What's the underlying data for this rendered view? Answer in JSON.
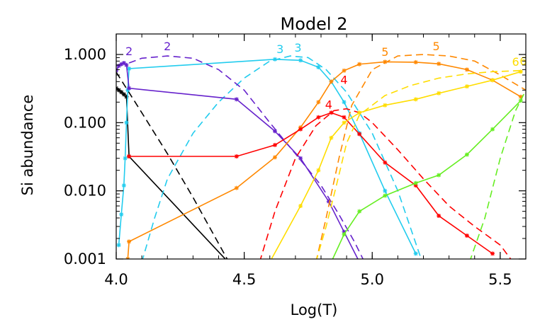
{
  "chart_data": {
    "type": "line",
    "title": "Model   2",
    "xlabel": "Log(T)",
    "ylabel": "Si abundance",
    "xlim": [
      4.0,
      5.6
    ],
    "ylim": [
      0.001,
      2.0
    ],
    "yscale": "log",
    "xticks": [
      {
        "value": 4.0,
        "label": "4.0"
      },
      {
        "value": 4.5,
        "label": "4.5"
      },
      {
        "value": 5.0,
        "label": "5.0"
      },
      {
        "value": 5.5,
        "label": "5.5"
      }
    ],
    "yticks": [
      {
        "value": 0.001,
        "label": "0.001"
      },
      {
        "value": 0.01,
        "label": "0.010"
      },
      {
        "value": 0.1,
        "label": "0.100"
      },
      {
        "value": 1.0,
        "label": "1.000"
      }
    ],
    "series": [
      {
        "color": "#000000",
        "style": "solid",
        "x": [
          4.0,
          4.01,
          4.02,
          4.03,
          4.04,
          4.05,
          4.45
        ],
        "y": [
          0.32,
          0.3,
          0.28,
          0.26,
          0.24,
          0.032,
          0.0008
        ]
      },
      {
        "color": "#000000",
        "style": "dashed",
        "x": [
          4.0,
          4.1,
          4.2,
          4.3,
          4.44
        ],
        "y": [
          0.55,
          0.14,
          0.035,
          0.008,
          0.0009
        ]
      },
      {
        "color": "#22ccee",
        "style": "solid",
        "x": [
          4.01,
          4.02,
          4.03,
          4.035,
          4.04,
          4.045,
          4.05,
          4.62,
          4.72,
          4.79,
          4.84,
          4.89,
          4.95,
          5.05,
          5.17
        ],
        "y": [
          0.0016,
          0.0045,
          0.012,
          0.03,
          0.1,
          0.3,
          0.62,
          0.85,
          0.82,
          0.65,
          0.4,
          0.2,
          0.07,
          0.01,
          0.0012
        ]
      },
      {
        "color": "#22ccee",
        "style": "dashed",
        "x": [
          4.1,
          4.15,
          4.2,
          4.3,
          4.4,
          4.5,
          4.6,
          4.68,
          4.75,
          4.82,
          4.9,
          5.0,
          5.1,
          5.2
        ],
        "y": [
          0.0009,
          0.004,
          0.015,
          0.07,
          0.2,
          0.45,
          0.8,
          0.95,
          0.9,
          0.6,
          0.28,
          0.07,
          0.01,
          0.0008
        ]
      },
      {
        "color": "#6622cc",
        "style": "solid",
        "x": [
          4.0,
          4.01,
          4.02,
          4.03,
          4.04,
          4.05,
          4.47,
          4.62,
          4.72,
          4.83,
          4.89,
          4.95
        ],
        "y": [
          0.58,
          0.68,
          0.72,
          0.75,
          0.7,
          0.32,
          0.22,
          0.075,
          0.03,
          0.007,
          0.0025,
          0.0009
        ]
      },
      {
        "color": "#6622cc",
        "style": "dashed",
        "x": [
          4.05,
          4.1,
          4.2,
          4.3,
          4.4,
          4.5,
          4.6,
          4.7,
          4.8,
          4.87,
          4.93,
          4.97
        ],
        "y": [
          0.75,
          0.88,
          0.95,
          0.88,
          0.6,
          0.3,
          0.1,
          0.035,
          0.012,
          0.0045,
          0.0018,
          0.0009
        ]
      },
      {
        "color": "#ff8800",
        "style": "solid",
        "x": [
          4.04,
          4.045,
          4.05,
          4.47,
          4.62,
          4.72,
          4.79,
          4.84,
          4.89,
          4.95,
          5.05,
          5.17,
          5.26,
          5.37,
          5.47,
          5.58
        ],
        "y": [
          0.0009,
          0.001,
          0.0018,
          0.011,
          0.031,
          0.085,
          0.2,
          0.4,
          0.58,
          0.72,
          0.78,
          0.77,
          0.73,
          0.6,
          0.42,
          0.24
        ]
      },
      {
        "color": "#ff8800",
        "style": "dashed",
        "x": [
          4.78,
          4.82,
          4.87,
          4.92,
          5.0,
          5.1,
          5.2,
          5.3,
          5.4,
          5.5,
          5.6
        ],
        "y": [
          0.0009,
          0.004,
          0.03,
          0.18,
          0.6,
          0.95,
          1.0,
          0.95,
          0.8,
          0.5,
          0.3
        ]
      },
      {
        "color": "#ff0000",
        "style": "solid",
        "x": [
          4.05,
          4.47,
          4.62,
          4.72,
          4.79,
          4.84,
          4.89,
          4.95,
          5.05,
          5.17,
          5.26,
          5.37,
          5.47
        ],
        "y": [
          0.032,
          0.032,
          0.047,
          0.08,
          0.12,
          0.14,
          0.12,
          0.068,
          0.026,
          0.012,
          0.0043,
          0.0022,
          0.0012
        ]
      },
      {
        "color": "#ff0000",
        "style": "dashed",
        "x": [
          4.56,
          4.62,
          4.7,
          4.78,
          4.85,
          4.9,
          4.95,
          5.0,
          5.1,
          5.2,
          5.3,
          5.4,
          5.5,
          5.55
        ],
        "y": [
          0.0009,
          0.005,
          0.03,
          0.09,
          0.15,
          0.16,
          0.14,
          0.1,
          0.04,
          0.015,
          0.006,
          0.003,
          0.0016,
          0.0009
        ]
      },
      {
        "color": "#ffdd00",
        "style": "solid",
        "x": [
          4.6,
          4.72,
          4.79,
          4.84,
          4.89,
          4.95,
          5.05,
          5.17,
          5.26,
          5.37,
          5.47,
          5.58
        ],
        "y": [
          0.0009,
          0.006,
          0.02,
          0.06,
          0.1,
          0.14,
          0.18,
          0.22,
          0.27,
          0.34,
          0.42,
          0.56
        ]
      },
      {
        "color": "#ffdd00",
        "style": "dashed",
        "x": [
          4.78,
          4.82,
          4.86,
          4.9,
          4.95,
          5.05,
          5.15,
          5.26,
          5.37,
          5.47,
          5.58
        ],
        "y": [
          0.0009,
          0.003,
          0.012,
          0.05,
          0.13,
          0.25,
          0.35,
          0.45,
          0.52,
          0.56,
          0.58
        ]
      },
      {
        "color": "#66ee22",
        "style": "solid",
        "x": [
          4.84,
          4.89,
          4.95,
          5.05,
          5.17,
          5.26,
          5.37,
          5.47,
          5.58
        ],
        "y": [
          0.0009,
          0.0023,
          0.005,
          0.0085,
          0.013,
          0.017,
          0.034,
          0.08,
          0.21
        ]
      },
      {
        "color": "#66ee22",
        "style": "dashed",
        "x": [
          5.38,
          5.44,
          5.5,
          5.56,
          5.6
        ],
        "y": [
          0.0009,
          0.004,
          0.03,
          0.15,
          0.3
        ]
      }
    ],
    "labels": [
      {
        "text": "2",
        "x": 4.05,
        "y": 0.98,
        "color": "#6622cc"
      },
      {
        "text": "2",
        "x": 4.2,
        "y": 1.15,
        "color": "#6622cc"
      },
      {
        "text": "3",
        "x": 4.64,
        "y": 1.05,
        "color": "#22ccee"
      },
      {
        "text": "3",
        "x": 4.71,
        "y": 1.1,
        "color": "#22ccee"
      },
      {
        "text": "4",
        "x": 4.83,
        "y": 0.16,
        "color": "#ff0000"
      },
      {
        "text": "4",
        "x": 4.89,
        "y": 0.37,
        "color": "#ff0000"
      },
      {
        "text": "5",
        "x": 5.05,
        "y": 0.95,
        "color": "#ff8800"
      },
      {
        "text": "5",
        "x": 5.25,
        "y": 1.15,
        "color": "#ff8800"
      },
      {
        "text": "6",
        "x": 5.56,
        "y": 0.68,
        "color": "#ffdd00"
      },
      {
        "text": "6",
        "x": 5.59,
        "y": 0.7,
        "color": "#ffdd00"
      }
    ],
    "legend": "none",
    "grid": false
  }
}
